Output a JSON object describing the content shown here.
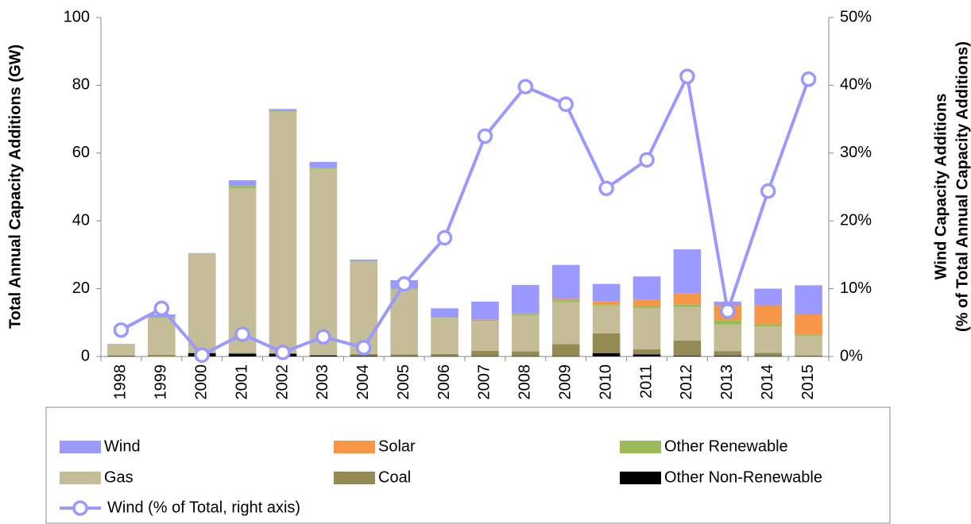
{
  "chart_data": {
    "type": "bar",
    "categories": [
      "1998",
      "1999",
      "2000",
      "2001",
      "2002",
      "2003",
      "2004",
      "2005",
      "2006",
      "2007",
      "2008",
      "2009",
      "2010",
      "2011",
      "2012",
      "2013",
      "2014",
      "2015"
    ],
    "ylabel": "Total Annual Capacity Additions (GW)",
    "y2label": [
      "Wind Capacity Additions",
      "(% of Total Annual Capacity Additions)"
    ],
    "ylim": [
      0,
      100
    ],
    "yticks": [
      0,
      20,
      40,
      60,
      80,
      100
    ],
    "y2lim": [
      0,
      50
    ],
    "y2ticks": [
      {
        "value": 0,
        "label": "0%"
      },
      {
        "value": 10,
        "label": "10%"
      },
      {
        "value": 20,
        "label": "20%"
      },
      {
        "value": 30,
        "label": "30%"
      },
      {
        "value": 40,
        "label": "40%"
      },
      {
        "value": 50,
        "label": "50%"
      }
    ],
    "stacked": true,
    "series": [
      {
        "name": "Other Non-Renewable",
        "color": "#000000",
        "values": [
          0.1,
          0,
          1.0,
          0.8,
          0.8,
          0.3,
          0.2,
          0.1,
          0.1,
          0.1,
          0.1,
          0.1,
          1.0,
          0.6,
          0.2,
          0.2,
          0.1,
          0.1
        ]
      },
      {
        "name": "Coal",
        "color": "#948a54",
        "values": [
          0.2,
          0.5,
          0.1,
          0.3,
          0.2,
          0.2,
          0.5,
          0.5,
          0.6,
          1.6,
          1.4,
          3.6,
          5.8,
          1.5,
          4.5,
          1.4,
          1.0,
          0.2
        ]
      },
      {
        "name": "Gas",
        "color": "#c4bd97",
        "values": [
          3.2,
          10.8,
          29.2,
          48.5,
          71.2,
          54.8,
          27.3,
          19.2,
          10.7,
          8.8,
          10.6,
          12.3,
          8.2,
          12.2,
          9.9,
          7.8,
          7.8,
          5.9
        ]
      },
      {
        "name": "Other Renewable",
        "color": "#9bbb59",
        "values": [
          0.1,
          0.2,
          0.1,
          0.7,
          0.4,
          0.4,
          0.2,
          0.3,
          0.3,
          0.3,
          0.4,
          0.6,
          0.4,
          0.7,
          0.8,
          1.2,
          0.6,
          0.4
        ]
      },
      {
        "name": "Solar",
        "color": "#f79646",
        "values": [
          0,
          0,
          0,
          0,
          0,
          0,
          0,
          0,
          0,
          0.1,
          0.2,
          0.4,
          0.8,
          1.8,
          3.3,
          4.5,
          5.6,
          5.8
        ]
      },
      {
        "name": "Wind",
        "color": "#9999ff",
        "values": [
          0.1,
          0.9,
          0.1,
          1.7,
          0.4,
          1.7,
          0.4,
          2.4,
          2.5,
          5.3,
          8.4,
          10.0,
          5.2,
          6.8,
          12.9,
          1.1,
          4.9,
          8.6
        ]
      },
      {
        "name": "Wind (% of Total, right axis)",
        "color": "#9999ff",
        "type": "line",
        "axis": "y2",
        "values": [
          3.9,
          7.1,
          0.2,
          3.3,
          0.6,
          2.9,
          1.3,
          10.7,
          17.5,
          32.5,
          39.8,
          37.2,
          24.8,
          29.0,
          41.3,
          6.7,
          24.4,
          40.9
        ]
      }
    ]
  }
}
